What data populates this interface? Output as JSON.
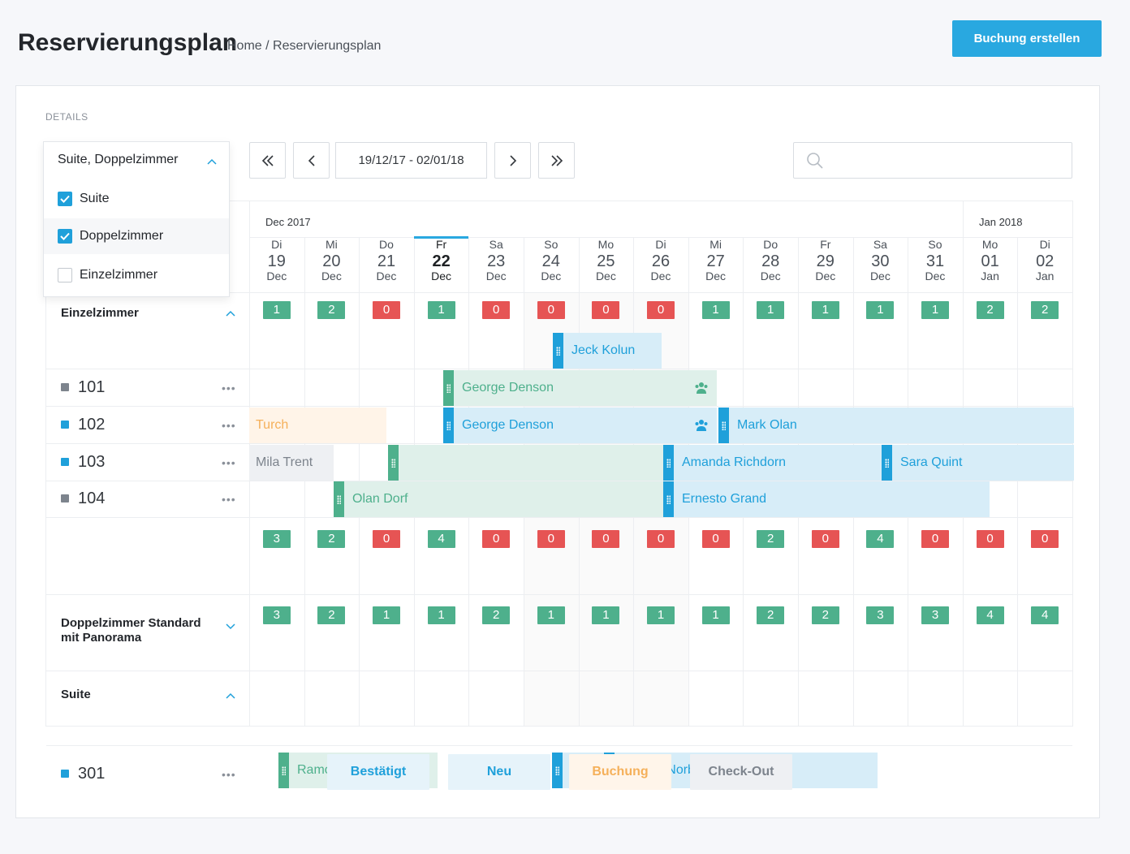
{
  "header": {
    "title": "Reservierungsplan",
    "breadcrumb": "Home / Reservierungsplan",
    "create_button": "Buchung erstellen"
  },
  "details_label": "DETAILS",
  "filter": {
    "selected": "Suite, Doppelzimmer",
    "options": [
      {
        "label": "Suite",
        "checked": true
      },
      {
        "label": "Doppelzimmer",
        "checked": true
      },
      {
        "label": "Einzelzimmer",
        "checked": false
      }
    ]
  },
  "navigation": {
    "date_range": "19/12/17 - 02/01/18",
    "search_placeholder": ""
  },
  "calendar": {
    "months": [
      "Dec 2017",
      "Jan 2018"
    ],
    "days": [
      {
        "wd": "Di",
        "num": "19",
        "mon": "Dec"
      },
      {
        "wd": "Mi",
        "num": "20",
        "mon": "Dec"
      },
      {
        "wd": "Do",
        "num": "21",
        "mon": "Dec"
      },
      {
        "wd": "Fr",
        "num": "22",
        "mon": "Dec"
      },
      {
        "wd": "Sa",
        "num": "23",
        "mon": "Dec"
      },
      {
        "wd": "So",
        "num": "24",
        "mon": "Dec"
      },
      {
        "wd": "Mo",
        "num": "25",
        "mon": "Dec"
      },
      {
        "wd": "Di",
        "num": "26",
        "mon": "Dec"
      },
      {
        "wd": "Mi",
        "num": "27",
        "mon": "Dec"
      },
      {
        "wd": "Do",
        "num": "28",
        "mon": "Dec"
      },
      {
        "wd": "Fr",
        "num": "29",
        "mon": "Dec"
      },
      {
        "wd": "Sa",
        "num": "30",
        "mon": "Dec"
      },
      {
        "wd": "So",
        "num": "31",
        "mon": "Dec"
      },
      {
        "wd": "Mo",
        "num": "01",
        "mon": "Jan"
      },
      {
        "wd": "Di",
        "num": "02",
        "mon": "Jan"
      }
    ],
    "today_index": 3
  },
  "categories": [
    {
      "name": "Einzelzimmer",
      "availability": [
        1,
        2,
        0,
        1,
        0,
        0,
        0,
        0,
        1,
        1,
        1,
        1,
        1,
        2,
        2
      ]
    },
    {
      "name": "Doppelzimmer Standard mit Panorama",
      "availability": [
        3,
        2,
        0,
        4,
        0,
        0,
        0,
        0,
        0,
        2,
        0,
        4,
        0,
        0,
        0
      ]
    },
    {
      "name": "Suite",
      "availability": [
        3,
        2,
        1,
        1,
        2,
        1,
        1,
        1,
        1,
        2,
        2,
        3,
        3,
        4,
        4
      ]
    }
  ],
  "rooms": [
    "101",
    "102",
    "103",
    "104",
    "301"
  ],
  "bookings": [
    {
      "guest": "Jeck Kolun",
      "status": "blue"
    },
    {
      "guest": "George Denson",
      "status": "green"
    },
    {
      "guest": "Turch",
      "status": "orange"
    },
    {
      "guest": "George Denson",
      "status": "blue"
    },
    {
      "guest": "Mark Olan",
      "status": "blue"
    },
    {
      "guest": "Mila Trent",
      "status": "gray"
    },
    {
      "guest": "",
      "status": "green"
    },
    {
      "guest": "Amanda Richdorn",
      "status": "blue"
    },
    {
      "guest": "Sara Quint",
      "status": "blue"
    },
    {
      "guest": "Olan Dorf",
      "status": "green"
    },
    {
      "guest": "Ernesto Grand",
      "status": "blue"
    },
    {
      "guest": "Ramona Cold",
      "status": "green"
    },
    {
      "guest": "Ma",
      "status": "blue"
    },
    {
      "guest": "Sophia Norborn",
      "status": "blue"
    }
  ],
  "legend": [
    "Bestätigt",
    "Neu",
    "Buchung",
    "Check-Out"
  ],
  "colors": {
    "accent": "#29a8e0",
    "confirmed": "#4eb08c",
    "new": "#1fa0da",
    "booking": "#f5b05a",
    "checkout": "#7d848d",
    "unavailable": "#e65454"
  }
}
